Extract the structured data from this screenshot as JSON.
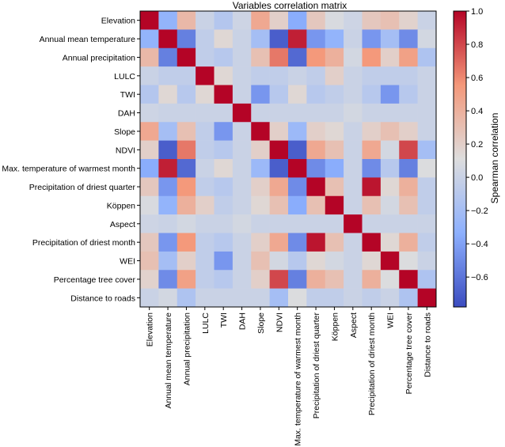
{
  "chart_data": {
    "type": "heatmap",
    "title": "Variables correlation matrix",
    "variables": [
      "Elevation",
      "Annual mean temperature",
      "Annual precipitation",
      "LULC",
      "TWI",
      "DAH",
      "Slope",
      "NDVI",
      "Max. temperature of warmest month",
      "Precipitation of driest quarter",
      "Köppen",
      "Aspect",
      "Precipitation of driest month",
      "WEI",
      "Percentage tree cover",
      "Distance to roads"
    ],
    "matrix": [
      [
        1.0,
        -0.3,
        0.35,
        0.0,
        -0.12,
        0.02,
        0.45,
        0.2,
        -0.35,
        0.25,
        0.08,
        0.02,
        0.25,
        0.3,
        0.18,
        0.0
      ],
      [
        -0.3,
        1.0,
        -0.55,
        -0.05,
        0.15,
        0.0,
        -0.2,
        -0.7,
        0.92,
        -0.45,
        -0.3,
        0.0,
        -0.45,
        -0.2,
        -0.5,
        0.05
      ],
      [
        0.35,
        -0.55,
        1.0,
        -0.05,
        -0.1,
        0.0,
        0.3,
        0.65,
        -0.65,
        0.55,
        0.4,
        0.05,
        0.55,
        0.2,
        0.5,
        -0.15
      ],
      [
        0.0,
        -0.05,
        -0.05,
        1.0,
        0.15,
        0.0,
        -0.05,
        -0.05,
        0.0,
        -0.05,
        0.2,
        0.0,
        -0.05,
        -0.05,
        -0.05,
        0.0
      ],
      [
        -0.12,
        0.15,
        -0.1,
        0.15,
        1.0,
        0.0,
        -0.45,
        -0.1,
        0.15,
        -0.1,
        -0.05,
        0.0,
        -0.1,
        -0.45,
        -0.1,
        0.0
      ],
      [
        0.02,
        0.0,
        0.0,
        0.0,
        0.0,
        1.0,
        0.0,
        0.0,
        0.0,
        0.0,
        0.0,
        0.05,
        0.0,
        0.0,
        0.0,
        0.0
      ],
      [
        0.45,
        -0.2,
        0.3,
        -0.05,
        -0.45,
        0.0,
        1.0,
        0.2,
        -0.25,
        0.2,
        0.15,
        0.0,
        0.2,
        0.3,
        0.2,
        0.0
      ],
      [
        0.2,
        -0.7,
        0.65,
        -0.05,
        -0.1,
        0.0,
        0.2,
        1.0,
        -0.7,
        0.45,
        0.3,
        0.0,
        0.45,
        0.05,
        0.8,
        -0.2
      ],
      [
        -0.35,
        0.92,
        -0.65,
        0.0,
        0.15,
        0.0,
        -0.25,
        -0.7,
        1.0,
        -0.5,
        -0.35,
        0.0,
        -0.5,
        -0.1,
        -0.55,
        0.1
      ],
      [
        0.25,
        -0.45,
        0.55,
        -0.05,
        -0.1,
        0.0,
        0.2,
        0.45,
        -0.5,
        1.0,
        0.3,
        0.0,
        0.95,
        0.15,
        0.4,
        -0.05
      ],
      [
        0.08,
        -0.3,
        0.4,
        0.2,
        -0.05,
        0.0,
        0.15,
        0.3,
        -0.35,
        0.3,
        1.0,
        0.0,
        0.3,
        0.05,
        0.3,
        -0.05
      ],
      [
        0.02,
        0.0,
        0.05,
        0.0,
        0.0,
        0.05,
        0.0,
        0.0,
        0.0,
        0.0,
        0.0,
        1.0,
        0.0,
        0.0,
        0.0,
        0.0
      ],
      [
        0.25,
        -0.45,
        0.55,
        -0.05,
        -0.1,
        0.0,
        0.2,
        0.45,
        -0.5,
        0.95,
        0.3,
        0.0,
        1.0,
        0.15,
        0.4,
        -0.05
      ],
      [
        0.3,
        -0.2,
        0.2,
        -0.05,
        -0.45,
        0.0,
        0.3,
        0.05,
        -0.1,
        0.15,
        0.05,
        0.0,
        0.15,
        1.0,
        0.1,
        0.0
      ],
      [
        0.18,
        -0.5,
        0.5,
        -0.05,
        -0.1,
        0.0,
        0.2,
        0.8,
        -0.55,
        0.4,
        0.3,
        0.0,
        0.4,
        0.1,
        1.0,
        -0.15
      ],
      [
        0.0,
        0.05,
        -0.15,
        0.0,
        0.0,
        0.0,
        0.0,
        -0.2,
        0.1,
        -0.05,
        -0.05,
        0.0,
        -0.05,
        0.0,
        -0.15,
        1.0
      ]
    ],
    "colorbar": {
      "label": "Spearman correlation",
      "range": [
        -0.78,
        1.0
      ],
      "ticks": [
        "1.0",
        "0.8",
        "0.6",
        "0.4",
        "0.2",
        "0.0",
        "−0.2",
        "−0.4",
        "−0.6"
      ],
      "tick_values": [
        1.0,
        0.8,
        0.6,
        0.4,
        0.2,
        0.0,
        -0.2,
        -0.4,
        -0.6
      ],
      "colormap": "coolwarm",
      "color_low": "#3b4cc0",
      "color_mid": "#dddddd",
      "color_high": "#b40426"
    }
  }
}
